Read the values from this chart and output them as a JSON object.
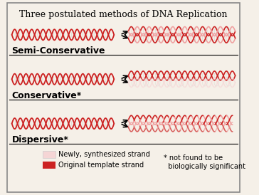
{
  "title": "Three postulated methods of DNA Replication",
  "title_fontsize": 9,
  "bg_color": "#f5f0e8",
  "border_color": "#888888",
  "dna_red": "#cc2222",
  "dna_pink": "#f0a0a0",
  "dna_light_pink": "#f5d5d5",
  "labels": [
    "Semi-Conservative",
    "Conservative*",
    "Dispersive*"
  ],
  "label_fontsize": 9,
  "legend_new": "Newly, synthesized strand",
  "legend_orig": "Original template strand",
  "footnote": "* not found to be\n  biologically significant",
  "footnote_fontsize": 7,
  "legend_fontsize": 7
}
